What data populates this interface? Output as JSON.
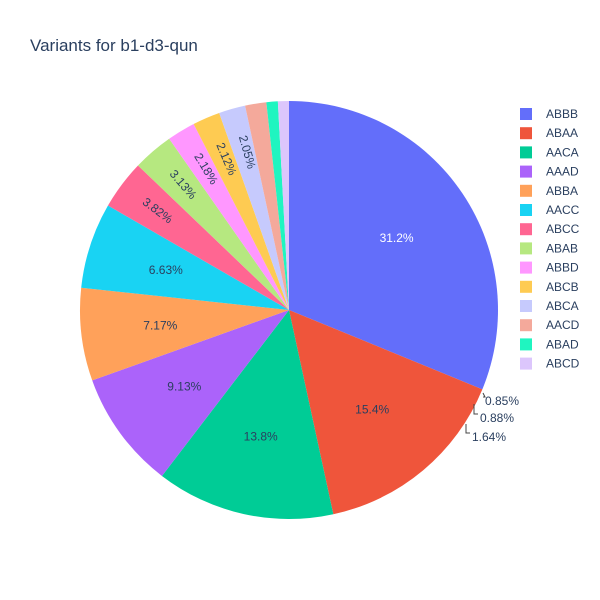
{
  "chart_data": {
    "type": "pie",
    "title": "Variants for b1-d3-qun",
    "slices": [
      {
        "label": "ABBB",
        "percent": 31.2,
        "text": "31.2%",
        "color": "#636efa"
      },
      {
        "label": "ABAA",
        "percent": 15.4,
        "text": "15.4%",
        "color": "#EF553B"
      },
      {
        "label": "AACA",
        "percent": 13.8,
        "text": "13.8%",
        "color": "#00cc96"
      },
      {
        "label": "AAAD",
        "percent": 9.13,
        "text": "9.13%",
        "color": "#ab63fa"
      },
      {
        "label": "ABBA",
        "percent": 7.17,
        "text": "7.17%",
        "color": "#FFA15A"
      },
      {
        "label": "AACC",
        "percent": 6.63,
        "text": "6.63%",
        "color": "#19d3f3"
      },
      {
        "label": "ABCC",
        "percent": 3.82,
        "text": "3.82%",
        "color": "#FF6692"
      },
      {
        "label": "ABAB",
        "percent": 3.13,
        "text": "3.13%",
        "color": "#B6E880"
      },
      {
        "label": "ABBD",
        "percent": 2.18,
        "text": "2.18%",
        "color": "#FF97FF"
      },
      {
        "label": "ABCB",
        "percent": 2.12,
        "text": "2.12%",
        "color": "#FECB52"
      },
      {
        "label": "ABCA",
        "percent": 2.05,
        "text": "2.05%",
        "color": "#c6cafd"
      },
      {
        "label": "AACD",
        "percent": 1.64,
        "text": "1.64%",
        "color": "#f4a99b"
      },
      {
        "label": "ABAD",
        "percent": 0.88,
        "text": "0.88%",
        "color": "#1ff5c0"
      },
      {
        "label": "ABCD",
        "percent": 0.85,
        "text": "0.85%",
        "color": "#dcc6fc"
      }
    ],
    "legend_position": "right",
    "start_angle": "top, clockwise"
  }
}
